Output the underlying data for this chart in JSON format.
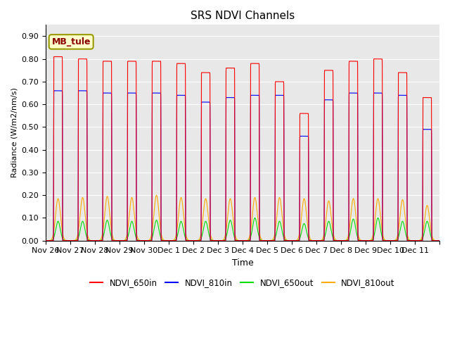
{
  "title": "SRS NDVI Channels",
  "xlabel": "Time",
  "ylabel": "Radiance (W/m2/nm/s)",
  "ylim": [
    0.0,
    0.95
  ],
  "yticks": [
    0.0,
    0.1,
    0.2,
    0.3,
    0.4,
    0.5,
    0.6,
    0.7,
    0.8,
    0.9
  ],
  "bg_color": "#e8e8e8",
  "annotation_text": "MB_tule",
  "annotation_bg": "#ffffcc",
  "annotation_border": "#999900",
  "series": {
    "NDVI_650in": {
      "color": "#ff0000",
      "label": "NDVI_650in"
    },
    "NDVI_810in": {
      "color": "#0000ff",
      "label": "NDVI_810in"
    },
    "NDVI_650out": {
      "color": "#00dd00",
      "label": "NDVI_650out"
    },
    "NDVI_810out": {
      "color": "#ffaa00",
      "label": "NDVI_810out"
    }
  },
  "peak_650in": [
    0.81,
    0.8,
    0.79,
    0.79,
    0.79,
    0.78,
    0.74,
    0.76,
    0.78,
    0.7,
    0.56,
    0.75,
    0.79,
    0.8,
    0.74,
    0.63
  ],
  "peak_810in": [
    0.66,
    0.66,
    0.65,
    0.65,
    0.65,
    0.64,
    0.61,
    0.63,
    0.64,
    0.64,
    0.46,
    0.62,
    0.65,
    0.65,
    0.64,
    0.49
  ],
  "peak_650out": [
    0.085,
    0.085,
    0.09,
    0.085,
    0.09,
    0.085,
    0.085,
    0.09,
    0.1,
    0.085,
    0.075,
    0.085,
    0.095,
    0.1,
    0.085,
    0.085
  ],
  "peak_810out": [
    0.185,
    0.19,
    0.195,
    0.19,
    0.2,
    0.19,
    0.185,
    0.185,
    0.19,
    0.19,
    0.185,
    0.175,
    0.185,
    0.185,
    0.18,
    0.155
  ],
  "n_days": 16,
  "samples_per_day": 2000,
  "tick_labels": [
    "Nov 26",
    "Nov 27",
    "Nov 28",
    "Nov 29",
    "Nov 30",
    "Dec 1",
    "Dec 2",
    "Dec 3",
    "Dec 4",
    "Dec 5",
    "Dec 6",
    "Dec 7",
    "Dec 8",
    "Dec 9",
    "Dec 10",
    "Dec 11"
  ]
}
